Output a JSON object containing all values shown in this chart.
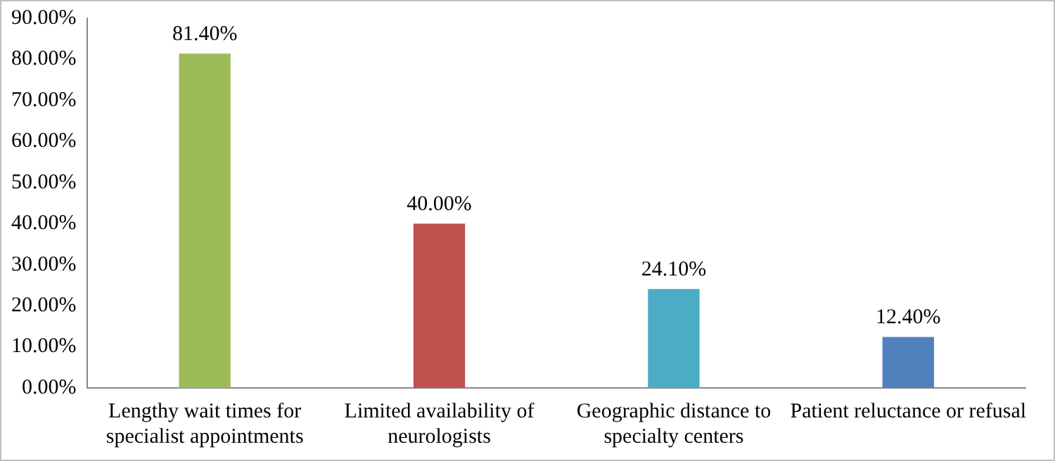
{
  "chart_data": {
    "type": "bar",
    "categories": [
      "Lengthy wait times for specialist appointments",
      "Limited availability of neurologists",
      "Geographic distance to specialty centers",
      "Patient reluctance or refusal"
    ],
    "values": [
      81.4,
      40,
      24.1,
      12.4
    ],
    "colors": [
      "#9bbb59",
      "#c0504d",
      "#4bacc6",
      "#4f81bd"
    ],
    "value_labels": [
      "81.40%",
      "40.00%",
      "24.10%",
      "12.40%"
    ],
    "ylim": [
      0,
      90
    ],
    "yticks": [
      {
        "value": 0,
        "label": "0.00%"
      },
      {
        "value": 10,
        "label": "10.00%"
      },
      {
        "value": 20,
        "label": "20.00%"
      },
      {
        "value": 30,
        "label": "30.00%"
      },
      {
        "value": 40,
        "label": "40.00%"
      },
      {
        "value": 50,
        "label": "50.00%"
      },
      {
        "value": 60,
        "label": "60.00%"
      },
      {
        "value": 70,
        "label": "70.00%"
      },
      {
        "value": 80,
        "label": "80.00%"
      },
      {
        "value": 90,
        "label": "90.00%"
      }
    ],
    "grid": false,
    "legend": false
  }
}
